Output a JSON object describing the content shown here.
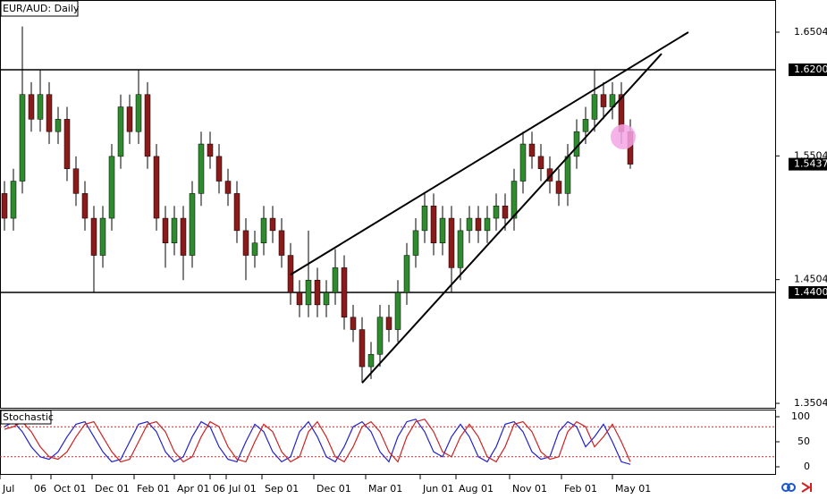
{
  "chart_data": {
    "type": "candlestick",
    "title": "EUR/AUD: Daily",
    "up_color": "#2e8b2e",
    "down_color": "#8b1a1a",
    "open": [
      1.52,
      1.5,
      1.53,
      1.6,
      1.58,
      1.6,
      1.57,
      1.58,
      1.54,
      1.52,
      1.5,
      1.47,
      1.5,
      1.55,
      1.59,
      1.57,
      1.6,
      1.55,
      1.5,
      1.48,
      1.5,
      1.47,
      1.52,
      1.56,
      1.55,
      1.53,
      1.52,
      1.49,
      1.47,
      1.48,
      1.5,
      1.49,
      1.47,
      1.44,
      1.43,
      1.45,
      1.43,
      1.44,
      1.46,
      1.42,
      1.41,
      1.38,
      1.39,
      1.42,
      1.41,
      1.44,
      1.47,
      1.49,
      1.51,
      1.48,
      1.5,
      1.46,
      1.49,
      1.5,
      1.49,
      1.5,
      1.51,
      1.5,
      1.53,
      1.56,
      1.55,
      1.54,
      1.53,
      1.52,
      1.55,
      1.57,
      1.58,
      1.6,
      1.59,
      1.6,
      1.57
    ],
    "high": [
      1.53,
      1.54,
      1.655,
      1.61,
      1.62,
      1.61,
      1.59,
      1.59,
      1.55,
      1.53,
      1.51,
      1.51,
      1.56,
      1.6,
      1.6,
      1.62,
      1.61,
      1.56,
      1.51,
      1.51,
      1.51,
      1.53,
      1.57,
      1.57,
      1.56,
      1.54,
      1.53,
      1.5,
      1.49,
      1.51,
      1.51,
      1.5,
      1.48,
      1.45,
      1.49,
      1.46,
      1.45,
      1.475,
      1.47,
      1.43,
      1.42,
      1.4,
      1.43,
      1.43,
      1.45,
      1.48,
      1.5,
      1.52,
      1.52,
      1.51,
      1.51,
      1.5,
      1.51,
      1.51,
      1.51,
      1.52,
      1.52,
      1.54,
      1.57,
      1.57,
      1.56,
      1.55,
      1.54,
      1.56,
      1.58,
      1.59,
      1.62,
      1.61,
      1.61,
      1.61,
      1.58
    ],
    "low": [
      1.49,
      1.49,
      1.52,
      1.57,
      1.57,
      1.56,
      1.56,
      1.53,
      1.51,
      1.49,
      1.44,
      1.46,
      1.49,
      1.54,
      1.56,
      1.56,
      1.54,
      1.49,
      1.46,
      1.47,
      1.45,
      1.46,
      1.51,
      1.54,
      1.52,
      1.51,
      1.48,
      1.45,
      1.46,
      1.47,
      1.48,
      1.46,
      1.43,
      1.42,
      1.42,
      1.42,
      1.42,
      1.43,
      1.41,
      1.4,
      1.367,
      1.37,
      1.38,
      1.4,
      1.4,
      1.43,
      1.46,
      1.48,
      1.47,
      1.47,
      1.44,
      1.45,
      1.48,
      1.48,
      1.48,
      1.49,
      1.49,
      1.49,
      1.52,
      1.54,
      1.53,
      1.52,
      1.51,
      1.51,
      1.54,
      1.56,
      1.57,
      1.58,
      1.58,
      1.56,
      1.54
    ],
    "close": [
      1.5,
      1.53,
      1.6,
      1.58,
      1.6,
      1.57,
      1.58,
      1.54,
      1.52,
      1.5,
      1.47,
      1.5,
      1.55,
      1.59,
      1.57,
      1.6,
      1.55,
      1.5,
      1.48,
      1.5,
      1.47,
      1.52,
      1.56,
      1.55,
      1.53,
      1.52,
      1.49,
      1.47,
      1.48,
      1.5,
      1.49,
      1.47,
      1.44,
      1.43,
      1.45,
      1.43,
      1.44,
      1.46,
      1.42,
      1.41,
      1.38,
      1.39,
      1.42,
      1.41,
      1.44,
      1.47,
      1.49,
      1.51,
      1.48,
      1.5,
      1.46,
      1.49,
      1.5,
      1.49,
      1.5,
      1.51,
      1.5,
      1.53,
      1.56,
      1.55,
      1.54,
      1.53,
      1.52,
      1.55,
      1.57,
      1.58,
      1.6,
      1.59,
      1.6,
      1.57,
      1.5437
    ],
    "xlim": [
      -0.5,
      86.3
    ],
    "xticks": [
      {
        "value": -0.5,
        "label": "Jul"
      },
      {
        "value": 3,
        "label": "06"
      },
      {
        "value": 5.2,
        "label": "Oct 01"
      },
      {
        "value": 9.8,
        "label": "Dec 01"
      },
      {
        "value": 14.5,
        "label": "Feb 01"
      },
      {
        "value": 19,
        "label": "Apr 01"
      },
      {
        "value": 23,
        "label": "06"
      },
      {
        "value": 24.8,
        "label": "Jul 01"
      },
      {
        "value": 28.8,
        "label": "Sep 01"
      },
      {
        "value": 34.6,
        "label": "Dec 01"
      },
      {
        "value": 40.4,
        "label": "Mar 01"
      },
      {
        "value": 46.5,
        "label": "Jun 01"
      },
      {
        "value": 50.5,
        "label": "Aug 01"
      },
      {
        "value": 56.5,
        "label": "Nov 01"
      },
      {
        "value": 62.3,
        "label": "Feb 01"
      },
      {
        "value": 68,
        "label": "May 01"
      }
    ],
    "ylim": [
      1.3468,
      1.6764
    ],
    "yticks": [
      1.6504,
      1.5504,
      1.4504,
      1.3504
    ],
    "levels": [
      {
        "value": 1.62,
        "label": "1.6200"
      },
      {
        "value": 1.44,
        "label": "1.4400"
      }
    ],
    "trendlines": [
      {
        "x": [
          32,
          76.5
        ],
        "y": [
          1.4544,
          1.6504
        ]
      },
      {
        "x": [
          40,
          73.5
        ],
        "y": [
          1.3669,
          1.633
        ]
      }
    ],
    "highlight": {
      "x": 69.2,
      "y": 1.5658,
      "color": "#f4a6e6"
    },
    "indicator": {
      "title": "Stochastic",
      "ylim": [
        -14.3,
        114.3
      ],
      "yticks": [
        100,
        50,
        0
      ],
      "levels": [
        80,
        20
      ],
      "series": [
        {
          "color": "#2222cc",
          "values": [
            80,
            90,
            70,
            40,
            20,
            15,
            30,
            60,
            85,
            90,
            60,
            30,
            10,
            15,
            50,
            85,
            90,
            70,
            30,
            10,
            20,
            60,
            90,
            80,
            40,
            15,
            10,
            50,
            85,
            70,
            30,
            10,
            20,
            70,
            90,
            60,
            20,
            10,
            40,
            80,
            90,
            70,
            30,
            10,
            60,
            90,
            95,
            70,
            30,
            20,
            60,
            85,
            60,
            20,
            10,
            40,
            85,
            90,
            70,
            30,
            15,
            20,
            70,
            90,
            80,
            40,
            60,
            85,
            50,
            10,
            5
          ]
        },
        {
          "color": "#cc2222",
          "values": [
            75,
            80,
            90,
            70,
            40,
            20,
            15,
            30,
            60,
            85,
            90,
            60,
            30,
            10,
            15,
            50,
            85,
            90,
            70,
            30,
            10,
            20,
            60,
            90,
            80,
            40,
            15,
            10,
            50,
            85,
            70,
            30,
            10,
            20,
            70,
            90,
            60,
            20,
            10,
            40,
            80,
            90,
            70,
            30,
            10,
            60,
            90,
            95,
            70,
            30,
            20,
            60,
            85,
            60,
            20,
            10,
            40,
            85,
            90,
            70,
            30,
            15,
            20,
            70,
            90,
            80,
            40,
            60,
            85,
            50,
            10
          ]
        }
      ]
    }
  }
}
